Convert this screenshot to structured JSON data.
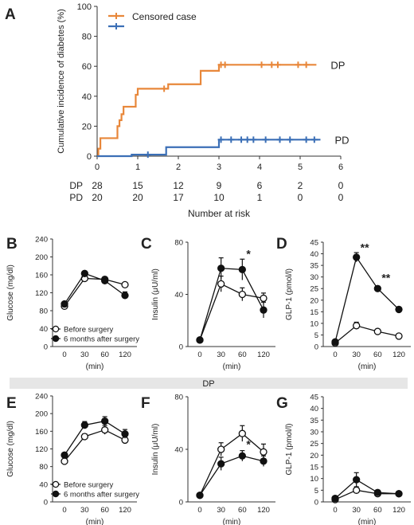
{
  "colors": {
    "dp": "#E8873A",
    "pd": "#3B6FB6",
    "axis": "#333333",
    "band": "#e6e6e6"
  },
  "band_label": "DP",
  "chart_data": [
    {
      "id": "A",
      "panel_label": "A",
      "type": "line",
      "step": true,
      "ylabel": "Cumulative incidence of diabetes (%)",
      "xlabel": "Number at risk",
      "xlim": [
        0,
        6
      ],
      "ylim": [
        0,
        100
      ],
      "x_ticks": [
        0,
        1,
        2,
        3,
        4,
        5,
        6
      ],
      "y_ticks": [
        0,
        20,
        40,
        60,
        80,
        100
      ],
      "legend": {
        "position": "top-left",
        "label": "Censored case"
      },
      "series": [
        {
          "name": "DP",
          "color_key": "dp",
          "steps": [
            [
              0,
              0
            ],
            [
              0.03,
              5
            ],
            [
              0.08,
              12
            ],
            [
              0.5,
              20
            ],
            [
              0.55,
              24
            ],
            [
              0.6,
              28
            ],
            [
              0.65,
              33
            ],
            [
              0.95,
              41
            ],
            [
              1.0,
              45
            ],
            [
              1.75,
              48
            ],
            [
              2.55,
              57
            ],
            [
              3.0,
              61
            ]
          ],
          "end_x": 5.4,
          "censored_x": [
            1.65,
            3.05,
            3.15,
            4.05,
            4.3,
            4.45,
            4.95,
            5.15
          ]
        },
        {
          "name": "PD",
          "color_key": "pd",
          "steps": [
            [
              0,
              0
            ],
            [
              0.85,
              1
            ],
            [
              1.7,
              6
            ],
            [
              3.0,
              11
            ]
          ],
          "end_x": 5.5,
          "censored_x": [
            1.25,
            3.05,
            3.3,
            3.55,
            3.7,
            3.85,
            4.15,
            4.5,
            4.75,
            5.15,
            5.35
          ]
        }
      ],
      "risk_table": {
        "title": "Number at risk",
        "rows": [
          {
            "name": "DP",
            "values": [
              "28",
              "15",
              "12",
              "9",
              "6",
              "2",
              "0"
            ]
          },
          {
            "name": "PD",
            "values": [
              "20",
              "20",
              "17",
              "10",
              "1",
              "0",
              "0"
            ]
          }
        ]
      }
    },
    {
      "id": "B",
      "panel_label": "B",
      "type": "line",
      "ylabel": "Glucose (mg/dl)",
      "xlabel": "(min)",
      "categories": [
        "0",
        "30",
        "60",
        "120"
      ],
      "ylim": [
        0,
        240
      ],
      "y_ticks": [
        0,
        40,
        80,
        120,
        160,
        200,
        240
      ],
      "legend": {
        "position": "bottom-left"
      },
      "series": [
        {
          "name": "Before surgery",
          "marker": "open",
          "values": [
            90,
            152,
            150,
            138
          ],
          "errors": [
            3,
            4,
            5,
            4
          ]
        },
        {
          "name": "6 months after surgery",
          "marker": "filled",
          "values": [
            95,
            163,
            147,
            114
          ],
          "errors": [
            3,
            4,
            8,
            8
          ]
        }
      ],
      "annotations": []
    },
    {
      "id": "C",
      "panel_label": "C",
      "type": "line",
      "ylabel": "Insulin (μU/ml)",
      "xlabel": "(min)",
      "categories": [
        "0",
        "30",
        "60",
        "120"
      ],
      "ylim": [
        0,
        80
      ],
      "y_ticks": [
        0,
        40,
        80
      ],
      "series": [
        {
          "name": "Before surgery",
          "marker": "open",
          "values": [
            5,
            48,
            40,
            37
          ],
          "errors": [
            1,
            6,
            5,
            4
          ]
        },
        {
          "name": "6 months after surgery",
          "marker": "filled",
          "values": [
            5,
            60,
            59,
            28
          ],
          "errors": [
            1,
            8,
            8,
            6
          ]
        }
      ],
      "annotations": [
        {
          "text": "*",
          "x_index": 2,
          "y": 68
        }
      ]
    },
    {
      "id": "D",
      "panel_label": "D",
      "type": "line",
      "ylabel": "GLP-1 (pmol/l)",
      "xlabel": "(min)",
      "categories": [
        "0",
        "30",
        "60",
        "120"
      ],
      "ylim": [
        0,
        45
      ],
      "y_ticks": [
        0,
        5,
        10,
        15,
        20,
        25,
        30,
        35,
        40,
        45
      ],
      "series": [
        {
          "name": "Before surgery",
          "marker": "open",
          "values": [
            1.5,
            9,
            6.5,
            4.5
          ],
          "errors": [
            0.5,
            1.5,
            1,
            0.8
          ]
        },
        {
          "name": "6 months after surgery",
          "marker": "filled",
          "values": [
            2,
            38.5,
            25,
            16
          ],
          "errors": [
            0.5,
            2,
            1,
            1
          ]
        }
      ],
      "annotations": [
        {
          "text": "**",
          "x_index": 1,
          "y": 41
        },
        {
          "text": "**",
          "x_index": 2,
          "y": 28
        }
      ]
    },
    {
      "id": "E",
      "panel_label": "E",
      "type": "line",
      "ylabel": "Glucose (mg/dl)",
      "xlabel": "(min)",
      "categories": [
        "0",
        "30",
        "60",
        "120"
      ],
      "ylim": [
        0,
        240
      ],
      "y_ticks": [
        0,
        40,
        80,
        120,
        160,
        200,
        240
      ],
      "legend": {
        "position": "bottom-left"
      },
      "series": [
        {
          "name": "Before surgery",
          "marker": "open",
          "values": [
            92,
            148,
            163,
            140
          ],
          "errors": [
            4,
            6,
            10,
            7
          ]
        },
        {
          "name": "6 months after surgery",
          "marker": "filled",
          "values": [
            106,
            174,
            183,
            154
          ],
          "errors": [
            5,
            8,
            10,
            10
          ]
        }
      ],
      "annotations": []
    },
    {
      "id": "F",
      "panel_label": "F",
      "type": "line",
      "ylabel": "Insulin (μU/ml)",
      "xlabel": "(min)",
      "categories": [
        "0",
        "30",
        "60",
        "120"
      ],
      "ylim": [
        0,
        80
      ],
      "y_ticks": [
        0,
        40,
        80
      ],
      "series": [
        {
          "name": "Before surgery",
          "marker": "open",
          "values": [
            5,
            40,
            52,
            38
          ],
          "errors": [
            1,
            5,
            6,
            6
          ]
        },
        {
          "name": "6 months after surgery",
          "marker": "filled",
          "values": [
            5,
            29,
            35,
            31
          ],
          "errors": [
            1,
            5,
            4,
            4
          ]
        }
      ],
      "annotations": [
        {
          "text": "*",
          "x_index": 2,
          "y": 41
        }
      ]
    },
    {
      "id": "G",
      "panel_label": "G",
      "type": "line",
      "ylabel": "GLP-1 (pmol/l)",
      "xlabel": "(min)",
      "categories": [
        "0",
        "30",
        "60",
        "120"
      ],
      "ylim": [
        0,
        45
      ],
      "y_ticks": [
        0,
        5,
        10,
        15,
        20,
        25,
        30,
        35,
        40,
        45
      ],
      "series": [
        {
          "name": "Before surgery",
          "marker": "open",
          "values": [
            1,
            5,
            3.5,
            3.5
          ],
          "errors": [
            0.3,
            1.5,
            0.6,
            0.6
          ]
        },
        {
          "name": "6 months after surgery",
          "marker": "filled",
          "values": [
            1.5,
            9.5,
            4,
            3.5
          ],
          "errors": [
            0.3,
            3,
            1,
            0.6
          ]
        }
      ],
      "annotations": []
    }
  ]
}
